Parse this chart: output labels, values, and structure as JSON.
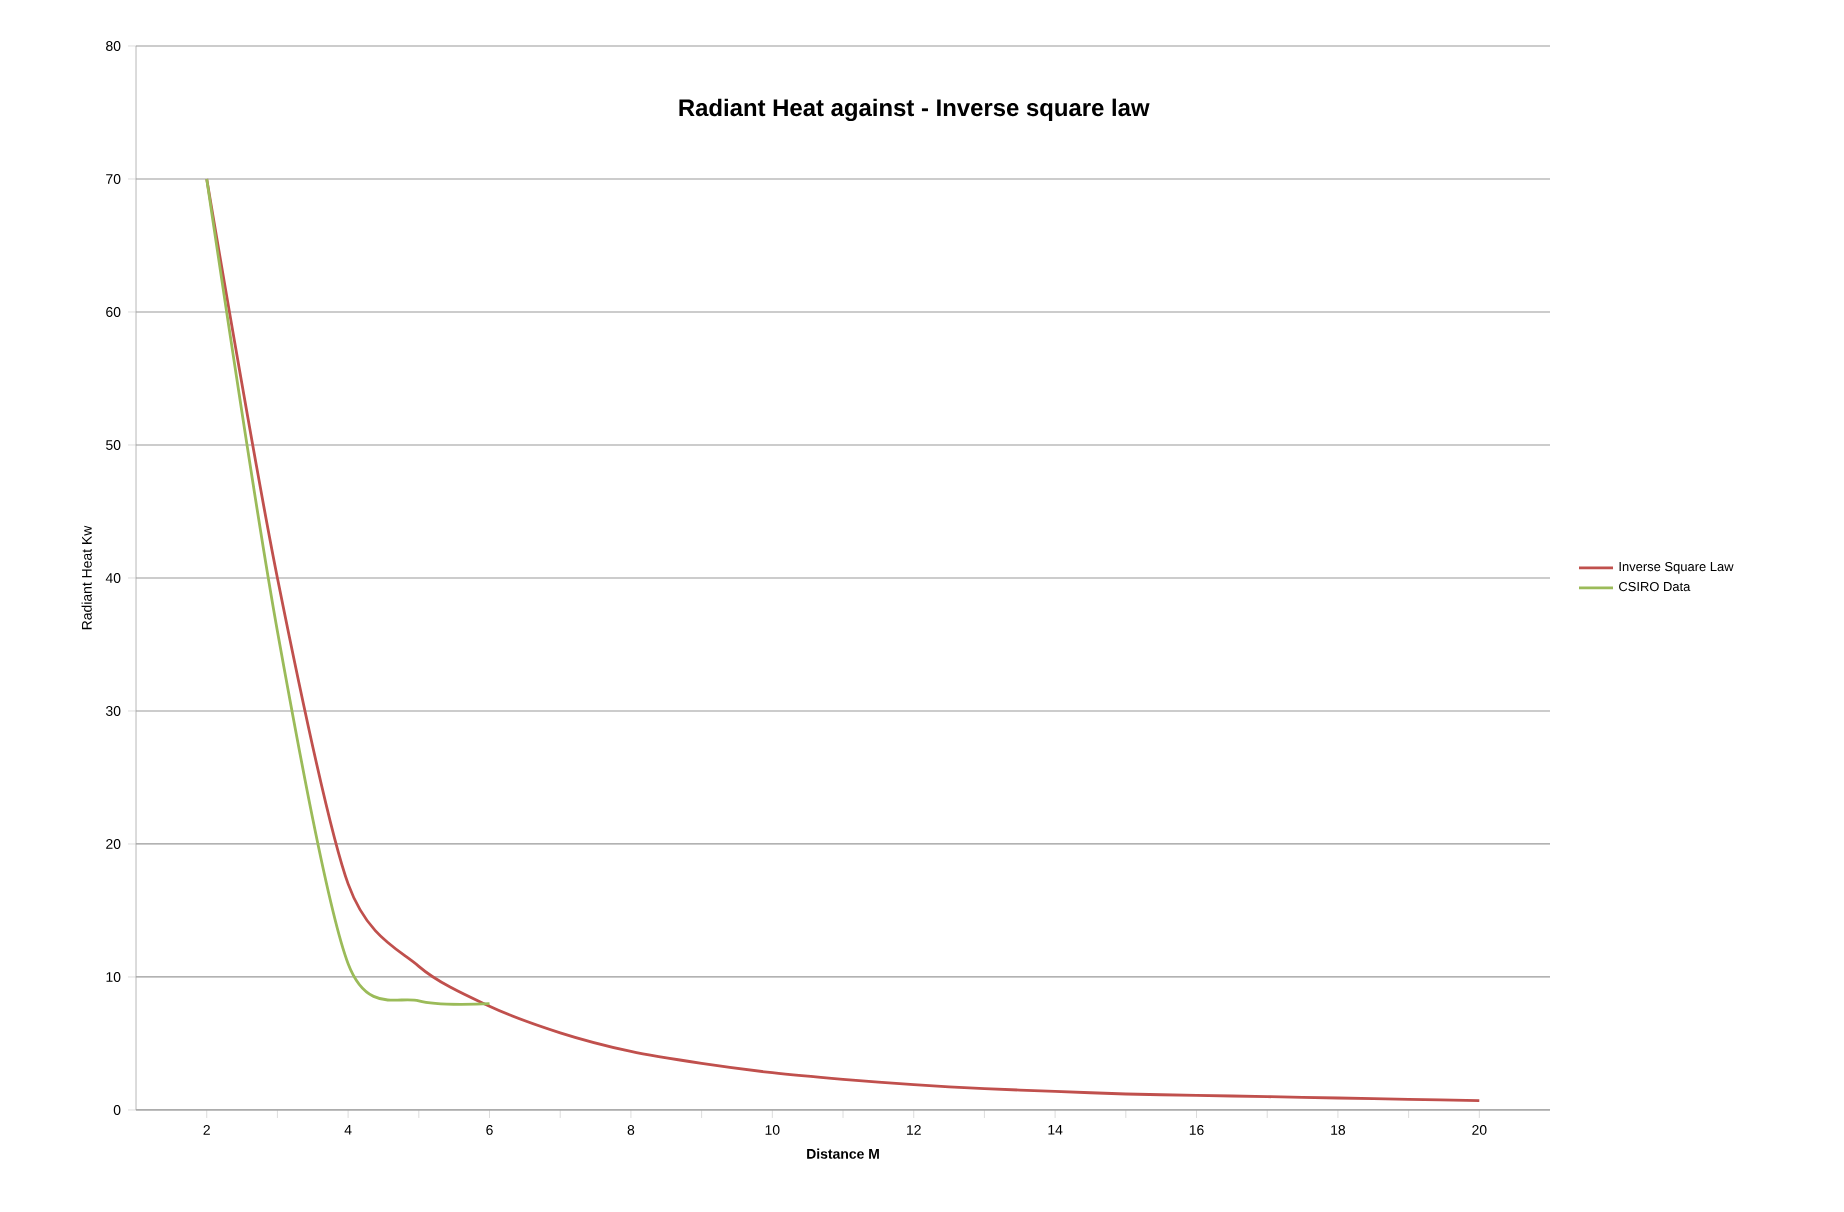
{
  "chart_data": {
    "type": "line",
    "title": "Radiant Heat against - Inverse square law",
    "xlabel": "Distance  M",
    "ylabel": "Radiant Heat Kw",
    "xlim": [
      1,
      21
    ],
    "ylim": [
      0,
      80
    ],
    "xticks": [
      {
        "value": 2,
        "label": "2"
      },
      {
        "value": 3,
        "label": null
      },
      {
        "value": 4,
        "label": "4"
      },
      {
        "value": 5,
        "label": null
      },
      {
        "value": 6,
        "label": "6"
      },
      {
        "value": 7,
        "label": null
      },
      {
        "value": 8,
        "label": "8"
      },
      {
        "value": 9,
        "label": null
      },
      {
        "value": 10,
        "label": "10"
      },
      {
        "value": 11,
        "label": null
      },
      {
        "value": 12,
        "label": "12"
      },
      {
        "value": 13,
        "label": null
      },
      {
        "value": 14,
        "label": "14"
      },
      {
        "value": 15,
        "label": null
      },
      {
        "value": 16,
        "label": "16"
      },
      {
        "value": 17,
        "label": null
      },
      {
        "value": 18,
        "label": "18"
      },
      {
        "value": 19,
        "label": null
      },
      {
        "value": 20,
        "label": "20"
      }
    ],
    "yticks": [
      0,
      10,
      20,
      30,
      40,
      50,
      60,
      70,
      80
    ],
    "grid": "y",
    "legend": "right",
    "marker": "none",
    "line_style": "solid",
    "series": [
      {
        "name": "Inverse Square Law",
        "color": "#c0504d",
        "x": [
          2,
          3,
          4,
          5,
          6,
          7,
          8,
          9,
          10,
          11,
          12,
          13,
          14,
          15,
          16,
          17,
          18,
          19,
          20
        ],
        "values": [
          70,
          40,
          17,
          10.8,
          7.8,
          5.8,
          4.4,
          3.5,
          2.8,
          2.3,
          1.9,
          1.6,
          1.4,
          1.2,
          1.1,
          1.0,
          0.9,
          0.8,
          0.7
        ]
      },
      {
        "name": "CSIRO Data",
        "color": "#9bbb59",
        "x": [
          2,
          3,
          4,
          5,
          6
        ],
        "values": [
          70,
          36,
          11,
          8.2,
          8
        ]
      }
    ]
  }
}
